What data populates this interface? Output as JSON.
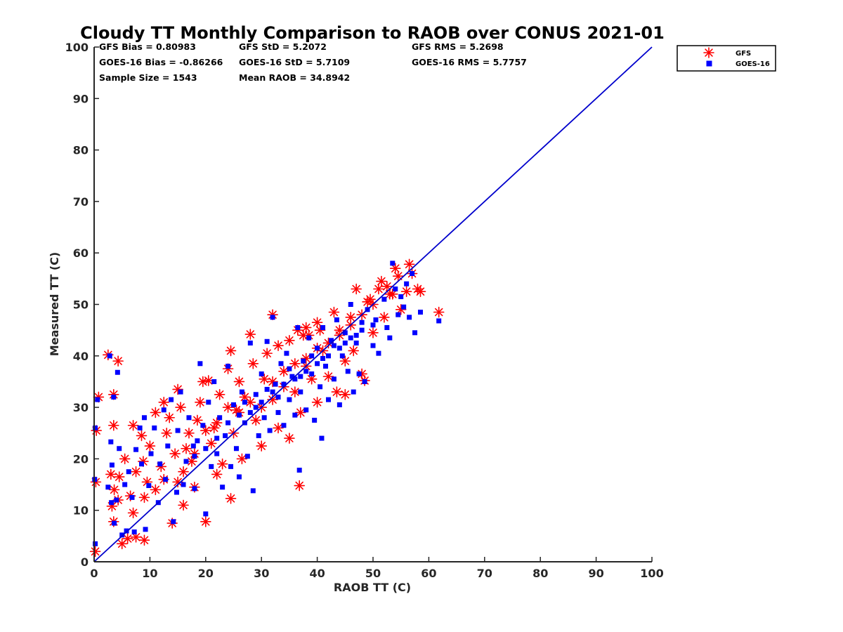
{
  "chart_data": {
    "type": "scatter",
    "title": "Cloudy TT Monthly Comparison to RAOB over CONUS 2021-01",
    "xlabel": "RAOB TT (C)",
    "ylabel": "Measured TT (C)",
    "xlim": [
      0,
      100
    ],
    "ylim": [
      0,
      100
    ],
    "x_ticks": [
      "0",
      "10",
      "20",
      "30",
      "40",
      "50",
      "60",
      "70",
      "80",
      "90",
      "100"
    ],
    "y_ticks": [
      "0",
      "10",
      "20",
      "30",
      "40",
      "50",
      "60",
      "70",
      "80",
      "90",
      "100"
    ],
    "grid": false,
    "legend_position": "outside top-right",
    "stats": {
      "gfs_bias": "GFS Bias = 0.80983",
      "goes_bias": "GOES-16 Bias = -0.86266",
      "sample_size": "Sample Size = 1543",
      "gfs_std": "GFS StD = 5.2072",
      "goes_std": "GOES-16 StD = 5.7109",
      "mean_raob": "Mean RAOB = 34.8942",
      "gfs_rms": "GFS RMS = 5.2698",
      "goes_rms": "GOES-16 RMS = 5.7757"
    },
    "reference_line": {
      "x": [
        0,
        100
      ],
      "y": [
        0,
        100
      ],
      "color": "#0000cc"
    },
    "series": [
      {
        "name": "GFS",
        "marker": "asterisk",
        "color": "#ff0000",
        "points": [
          [
            0.2,
            2.0
          ],
          [
            0.3,
            15.5
          ],
          [
            0.4,
            25.5
          ],
          [
            0.8,
            32.0
          ],
          [
            2.5,
            40.2
          ],
          [
            4.3,
            39.0
          ],
          [
            3.5,
            32.5
          ],
          [
            3.5,
            26.5
          ],
          [
            3.0,
            17.0
          ],
          [
            3.6,
            14.0
          ],
          [
            3.2,
            10.8
          ],
          [
            3.5,
            7.8
          ],
          [
            4.3,
            12.0
          ],
          [
            4.5,
            16.5
          ],
          [
            5.0,
            3.5
          ],
          [
            5.5,
            20.0
          ],
          [
            6.0,
            4.5
          ],
          [
            6.5,
            12.8
          ],
          [
            7.0,
            9.5
          ],
          [
            7.5,
            4.8
          ],
          [
            7.0,
            26.5
          ],
          [
            7.5,
            17.5
          ],
          [
            8.5,
            24.5
          ],
          [
            8.8,
            19.5
          ],
          [
            9.0,
            12.5
          ],
          [
            9.0,
            4.2
          ],
          [
            9.5,
            15.5
          ],
          [
            10.0,
            22.5
          ],
          [
            11.0,
            14.0
          ],
          [
            11.0,
            29.0
          ],
          [
            12.0,
            18.5
          ],
          [
            12.5,
            31.0
          ],
          [
            12.5,
            16.0
          ],
          [
            13.0,
            25.0
          ],
          [
            13.5,
            28.0
          ],
          [
            14.0,
            7.5
          ],
          [
            14.5,
            21.0
          ],
          [
            15.0,
            33.5
          ],
          [
            15.0,
            15.5
          ],
          [
            15.5,
            30.0
          ],
          [
            16.0,
            11.0
          ],
          [
            16.5,
            22.0
          ],
          [
            17.0,
            25.0
          ],
          [
            17.5,
            19.5
          ],
          [
            18.0,
            14.5
          ],
          [
            18.5,
            27.5
          ],
          [
            19.0,
            31.0
          ],
          [
            19.5,
            35.0
          ],
          [
            20.0,
            7.8
          ],
          [
            20.5,
            35.2
          ],
          [
            21.0,
            23.0
          ],
          [
            21.5,
            26.0
          ],
          [
            22.0,
            17.0
          ],
          [
            22.5,
            32.5
          ],
          [
            23.0,
            19.0
          ],
          [
            24.0,
            37.5
          ],
          [
            24.5,
            41.0
          ],
          [
            24.5,
            12.3
          ],
          [
            25.0,
            25.0
          ],
          [
            25.5,
            29.5
          ],
          [
            26.0,
            35.0
          ],
          [
            26.5,
            20.0
          ],
          [
            27.0,
            32.0
          ],
          [
            28.0,
            44.2
          ],
          [
            28.5,
            38.5
          ],
          [
            29.0,
            27.5
          ],
          [
            30.0,
            22.5
          ],
          [
            30.5,
            35.5
          ],
          [
            31.0,
            40.5
          ],
          [
            32.0,
            48.0
          ],
          [
            32.0,
            31.5
          ],
          [
            33.0,
            42.0
          ],
          [
            33.0,
            26.0
          ],
          [
            34.0,
            37.0
          ],
          [
            35.0,
            24.0
          ],
          [
            35.0,
            43.0
          ],
          [
            36.0,
            33.0
          ],
          [
            36.5,
            45.0
          ],
          [
            36.8,
            14.8
          ],
          [
            37.0,
            29.0
          ],
          [
            38.0,
            39.5
          ],
          [
            38.5,
            44.0
          ],
          [
            39.0,
            35.5
          ],
          [
            40.0,
            46.5
          ],
          [
            40.0,
            31.0
          ],
          [
            41.0,
            41.0
          ],
          [
            42.0,
            36.0
          ],
          [
            43.0,
            48.5
          ],
          [
            43.5,
            33.0
          ],
          [
            44.0,
            44.0
          ],
          [
            45.0,
            39.0
          ],
          [
            45.0,
            32.5
          ],
          [
            46.0,
            47.5
          ],
          [
            46.5,
            41.0
          ],
          [
            47.0,
            53.0
          ],
          [
            48.0,
            36.5
          ],
          [
            48.5,
            35.2
          ],
          [
            49.0,
            50.5
          ],
          [
            50.0,
            44.5
          ],
          [
            51.0,
            53.0
          ],
          [
            51.5,
            54.5
          ],
          [
            52.0,
            47.5
          ],
          [
            53.0,
            52.0
          ],
          [
            54.0,
            57.0
          ],
          [
            54.5,
            55.5
          ],
          [
            55.0,
            49.0
          ],
          [
            56.0,
            52.5
          ],
          [
            56.5,
            57.8
          ],
          [
            57.0,
            56.0
          ],
          [
            58.0,
            53.0
          ],
          [
            58.5,
            52.5
          ],
          [
            61.8,
            48.5
          ],
          [
            22.0,
            27.0
          ],
          [
            26.0,
            29.0
          ],
          [
            30.0,
            30.0
          ],
          [
            34.0,
            34.0
          ],
          [
            38.0,
            38.0
          ],
          [
            42.0,
            42.5
          ],
          [
            46.0,
            46.0
          ],
          [
            50.0,
            50.0
          ],
          [
            28.0,
            31.0
          ],
          [
            32.0,
            35.0
          ],
          [
            36.0,
            38.5
          ],
          [
            40.0,
            41.5
          ],
          [
            44.0,
            45.0
          ],
          [
            48.0,
            48.0
          ],
          [
            24.0,
            30.0
          ],
          [
            20.0,
            25.5
          ],
          [
            18.0,
            21.0
          ],
          [
            16.0,
            17.5
          ],
          [
            38.0,
            45.5
          ],
          [
            40.5,
            45.0
          ],
          [
            37.5,
            44.0
          ],
          [
            49.5,
            51.0
          ],
          [
            52.5,
            53.5
          ],
          [
            53.5,
            52.0
          ]
        ]
      },
      {
        "name": "GOES-16",
        "marker": "square",
        "color": "#0000ff",
        "points": [
          [
            0.2,
            3.5
          ],
          [
            0.1,
            16.0
          ],
          [
            0.2,
            26.0
          ],
          [
            0.6,
            31.5
          ],
          [
            2.8,
            40.0
          ],
          [
            4.2,
            36.8
          ],
          [
            3.5,
            32.0
          ],
          [
            3.0,
            23.3
          ],
          [
            3.2,
            18.8
          ],
          [
            2.5,
            14.5
          ],
          [
            3.1,
            11.5
          ],
          [
            3.6,
            7.5
          ],
          [
            4.0,
            12.0
          ],
          [
            4.5,
            22.0
          ],
          [
            5.0,
            5.2
          ],
          [
            5.5,
            15.0
          ],
          [
            5.8,
            6.0
          ],
          [
            6.2,
            17.5
          ],
          [
            6.8,
            12.5
          ],
          [
            7.2,
            5.8
          ],
          [
            7.5,
            21.8
          ],
          [
            8.2,
            26.0
          ],
          [
            8.5,
            19.0
          ],
          [
            9.2,
            6.3
          ],
          [
            9.0,
            28.0
          ],
          [
            9.8,
            14.8
          ],
          [
            10.2,
            21.0
          ],
          [
            10.8,
            26.0
          ],
          [
            11.5,
            11.5
          ],
          [
            11.8,
            19.0
          ],
          [
            12.5,
            29.5
          ],
          [
            12.8,
            16.0
          ],
          [
            13.2,
            22.5
          ],
          [
            13.8,
            31.5
          ],
          [
            14.2,
            7.8
          ],
          [
            14.8,
            13.5
          ],
          [
            15.0,
            25.5
          ],
          [
            15.5,
            33.0
          ],
          [
            16.0,
            15.0
          ],
          [
            16.5,
            19.5
          ],
          [
            17.0,
            28.0
          ],
          [
            17.8,
            22.5
          ],
          [
            18.0,
            14.2
          ],
          [
            18.5,
            23.5
          ],
          [
            19.0,
            38.5
          ],
          [
            19.5,
            26.5
          ],
          [
            20.0,
            9.3
          ],
          [
            20.5,
            31.0
          ],
          [
            21.0,
            18.5
          ],
          [
            21.5,
            35.0
          ],
          [
            22.0,
            21.0
          ],
          [
            22.5,
            28.0
          ],
          [
            23.0,
            14.5
          ],
          [
            23.5,
            24.5
          ],
          [
            24.0,
            38.0
          ],
          [
            24.5,
            18.5
          ],
          [
            25.0,
            30.5
          ],
          [
            25.5,
            22.0
          ],
          [
            26.0,
            16.5
          ],
          [
            26.5,
            33.0
          ],
          [
            27.0,
            27.0
          ],
          [
            27.5,
            20.5
          ],
          [
            28.0,
            42.5
          ],
          [
            28.5,
            13.8
          ],
          [
            29.0,
            32.5
          ],
          [
            29.5,
            24.5
          ],
          [
            30.0,
            36.5
          ],
          [
            30.5,
            28.0
          ],
          [
            31.0,
            42.8
          ],
          [
            31.5,
            25.5
          ],
          [
            32.0,
            47.5
          ],
          [
            32.5,
            34.5
          ],
          [
            33.0,
            29.0
          ],
          [
            33.5,
            38.5
          ],
          [
            34.0,
            26.5
          ],
          [
            34.5,
            40.5
          ],
          [
            35.0,
            31.5
          ],
          [
            35.5,
            36.0
          ],
          [
            36.0,
            28.5
          ],
          [
            36.5,
            45.5
          ],
          [
            36.8,
            17.8
          ],
          [
            37.0,
            33.0
          ],
          [
            37.5,
            39.0
          ],
          [
            38.0,
            29.5
          ],
          [
            38.5,
            43.5
          ],
          [
            39.0,
            36.5
          ],
          [
            39.5,
            27.5
          ],
          [
            40.0,
            41.5
          ],
          [
            40.5,
            34.0
          ],
          [
            40.8,
            24.0
          ],
          [
            41.0,
            45.5
          ],
          [
            41.5,
            38.0
          ],
          [
            42.0,
            31.5
          ],
          [
            42.5,
            43.0
          ],
          [
            43.0,
            35.5
          ],
          [
            43.5,
            47.0
          ],
          [
            44.0,
            30.5
          ],
          [
            44.5,
            40.0
          ],
          [
            45.0,
            44.5
          ],
          [
            45.5,
            37.0
          ],
          [
            46.0,
            50.0
          ],
          [
            46.5,
            33.0
          ],
          [
            47.0,
            42.5
          ],
          [
            47.5,
            36.5
          ],
          [
            48.0,
            46.5
          ],
          [
            48.5,
            35.0
          ],
          [
            49.0,
            49.0
          ],
          [
            50.0,
            42.0
          ],
          [
            50.5,
            47.0
          ],
          [
            51.0,
            40.5
          ],
          [
            52.0,
            51.0
          ],
          [
            52.5,
            45.5
          ],
          [
            53.0,
            43.5
          ],
          [
            53.5,
            58.0
          ],
          [
            54.0,
            53.0
          ],
          [
            54.5,
            48.0
          ],
          [
            55.0,
            51.5
          ],
          [
            55.5,
            49.5
          ],
          [
            56.0,
            54.0
          ],
          [
            56.5,
            47.5
          ],
          [
            57.0,
            56.0
          ],
          [
            57.5,
            44.5
          ],
          [
            58.5,
            48.5
          ],
          [
            61.8,
            46.8
          ],
          [
            24.0,
            27.0
          ],
          [
            26.0,
            28.5
          ],
          [
            28.0,
            29.0
          ],
          [
            30.0,
            31.0
          ],
          [
            32.0,
            33.0
          ],
          [
            34.0,
            34.5
          ],
          [
            36.0,
            35.5
          ],
          [
            38.0,
            37.0
          ],
          [
            40.0,
            38.5
          ],
          [
            42.0,
            40.0
          ],
          [
            44.0,
            41.5
          ],
          [
            46.0,
            43.5
          ],
          [
            48.0,
            45.0
          ],
          [
            50.0,
            46.0
          ],
          [
            27.0,
            31.0
          ],
          [
            31.0,
            33.5
          ],
          [
            35.0,
            37.5
          ],
          [
            39.0,
            40.0
          ],
          [
            43.0,
            42.0
          ],
          [
            47.0,
            44.0
          ],
          [
            29.0,
            30.0
          ],
          [
            33.0,
            32.0
          ],
          [
            37.0,
            36.0
          ],
          [
            41.0,
            39.5
          ],
          [
            45.0,
            42.5
          ],
          [
            22.0,
            24.0
          ],
          [
            20.0,
            22.0
          ],
          [
            18.0,
            20.5
          ]
        ]
      }
    ]
  }
}
